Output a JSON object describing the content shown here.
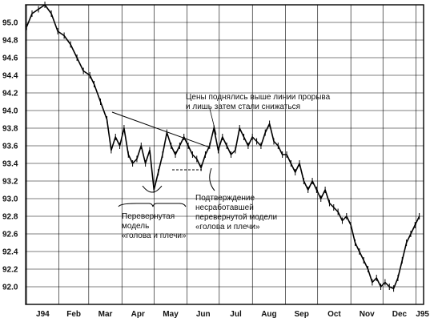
{
  "chart_data": {
    "type": "line",
    "title": "",
    "xlabel": "",
    "ylabel": "",
    "grid": true,
    "ylim": [
      91.8,
      95.2
    ],
    "y_ticks": [
      92.0,
      92.2,
      92.4,
      92.6,
      92.8,
      93.0,
      93.2,
      93.4,
      93.6,
      93.8,
      94.0,
      94.2,
      94.4,
      94.6,
      94.8,
      95.0
    ],
    "y_tick_labels": [
      "92.0",
      "92.2",
      "92.4",
      "92.6",
      "92.8",
      "93.0",
      "93.2",
      "93.4",
      "93.6",
      "93.8",
      "94.0",
      "94.2",
      "94.4",
      "94.6",
      "94.8",
      "95.0"
    ],
    "x_ticks": [
      1,
      31,
      59,
      90,
      120,
      151,
      181,
      212,
      243,
      273,
      304,
      334,
      365
    ],
    "x_tick_labels": [
      "J94",
      "Feb",
      "Mar",
      "Apr",
      "May",
      "Jun",
      "Jul",
      "Aug",
      "Sep",
      "Oct",
      "Nov",
      "Dec",
      "J95"
    ],
    "xlim": [
      0,
      372
    ],
    "series": [
      {
        "x": [
          1,
          6,
          12,
          18,
          24,
          30,
          36,
          42,
          48,
          54,
          60,
          64,
          70,
          76,
          80,
          84,
          88,
          92,
          96,
          100,
          104,
          108,
          112,
          116,
          120,
          124,
          128,
          132,
          136,
          140,
          144,
          148,
          152,
          156,
          160,
          164,
          168,
          172,
          176,
          180,
          184,
          188,
          192,
          196,
          200,
          204,
          208,
          212,
          216,
          220,
          224,
          228,
          232,
          236,
          240,
          244,
          248,
          252,
          256,
          260,
          264,
          268,
          272,
          276,
          280,
          284,
          288,
          292,
          296,
          300,
          304,
          308,
          312,
          316,
          320,
          324,
          328,
          332,
          336,
          340,
          344,
          348,
          352,
          356,
          360,
          364,
          368
        ],
        "values": [
          94.95,
          95.1,
          95.15,
          95.2,
          95.1,
          94.9,
          94.85,
          94.75,
          94.6,
          94.45,
          94.4,
          94.3,
          94.1,
          93.9,
          93.55,
          93.7,
          93.6,
          93.8,
          93.5,
          93.4,
          93.45,
          93.6,
          93.4,
          93.55,
          93.1,
          93.3,
          93.5,
          93.75,
          93.6,
          93.5,
          93.6,
          93.7,
          93.6,
          93.5,
          93.45,
          93.35,
          93.5,
          93.6,
          93.8,
          93.55,
          93.7,
          93.6,
          93.5,
          93.55,
          93.8,
          93.7,
          93.6,
          93.7,
          93.65,
          93.6,
          93.75,
          93.85,
          93.65,
          93.6,
          93.5,
          93.5,
          93.4,
          93.3,
          93.4,
          93.2,
          93.1,
          93.2,
          93.1,
          93.0,
          93.1,
          92.95,
          92.9,
          92.85,
          92.75,
          92.8,
          92.7,
          92.5,
          92.4,
          92.3,
          92.2,
          92.05,
          92.1,
          92.0,
          92.05,
          92.0,
          91.98,
          92.1,
          92.3,
          92.5,
          92.6,
          92.7,
          92.8
        ]
      }
    ],
    "annotations": [
      {
        "text_lines": [
          "Цены поднялись выше линии прорыва",
          "и лишь затем стали снижаться"
        ]
      },
      {
        "text_lines": [
          "Подтверждение",
          "несработавшей",
          "перевернутой модели",
          "«голова и плечи»"
        ]
      },
      {
        "text_lines": [
          "Перевернутая",
          "модель",
          "«голова и плечи»"
        ]
      }
    ]
  }
}
